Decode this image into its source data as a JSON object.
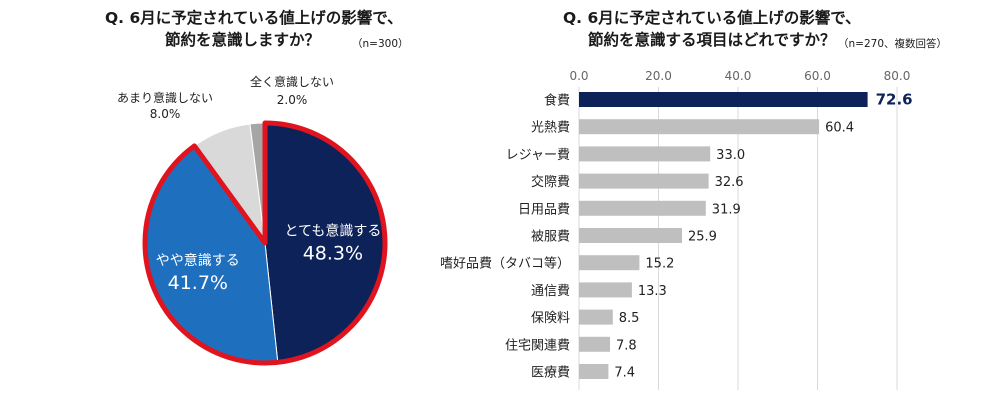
{
  "pie": {
    "title_line1": "Q. 6月に予定されている値上げの影響で、",
    "title_line2": "節約を意識しますか？",
    "note": "（n=300）"
  },
  "bar": {
    "title_line1": "Q. 6月に予定されている値上げの影響で、",
    "title_line2": "節約を意識する項目はどれですか？",
    "note": "（n=270、複数回答）"
  },
  "colors": {
    "navy": "#0d2259",
    "blue": "#1f6fbf",
    "light_gray": "#d9d9d9",
    "mid_gray": "#a6a6a6",
    "bar_gray": "#bfbfbf",
    "red": "#e0141e"
  },
  "chart_data": [
    {
      "type": "pie",
      "title": "Q. 6月に予定されている値上げの影響で、節約を意識しますか？",
      "n": "n=300",
      "slices": [
        {
          "label": "とても意識する",
          "value": 48.3,
          "display": "48.3%",
          "color": "#0d2259",
          "highlight": true
        },
        {
          "label": "やや意識する",
          "value": 41.7,
          "display": "41.7%",
          "color": "#1f6fbf",
          "highlight": true
        },
        {
          "label": "あまり意識しない",
          "value": 8.0,
          "display": "8.0%",
          "color": "#d9d9d9",
          "highlight": false
        },
        {
          "label": "全く意識しない",
          "value": 2.0,
          "display": "2.0%",
          "color": "#a6a6a6",
          "highlight": false
        }
      ]
    },
    {
      "type": "bar",
      "orientation": "horizontal",
      "title": "Q. 6月に予定されている値上げの影響で、節約を意識する項目はどれですか？",
      "n": "n=270、複数回答",
      "xlim": [
        0,
        80
      ],
      "ticks": [
        0,
        20,
        40,
        60,
        80
      ],
      "tick_labels": [
        "0.0",
        "20.0",
        "40.0",
        "60.0",
        "80.0"
      ],
      "grid": true,
      "categories": [
        "食費",
        "光熱費",
        "レジャー費",
        "交際費",
        "日用品費",
        "被服費",
        "嗜好品費（タバコ等）",
        "通信費",
        "保険料",
        "住宅関連費",
        "医療費"
      ],
      "values": [
        72.6,
        60.4,
        33.0,
        32.6,
        31.9,
        25.9,
        15.2,
        13.3,
        8.5,
        7.8,
        7.4
      ],
      "value_labels": [
        "72.6",
        "60.4",
        "33.0",
        "32.6",
        "31.9",
        "25.9",
        "15.2",
        "13.3",
        "8.5",
        "7.8",
        "7.4"
      ],
      "highlight_index": 0
    }
  ]
}
